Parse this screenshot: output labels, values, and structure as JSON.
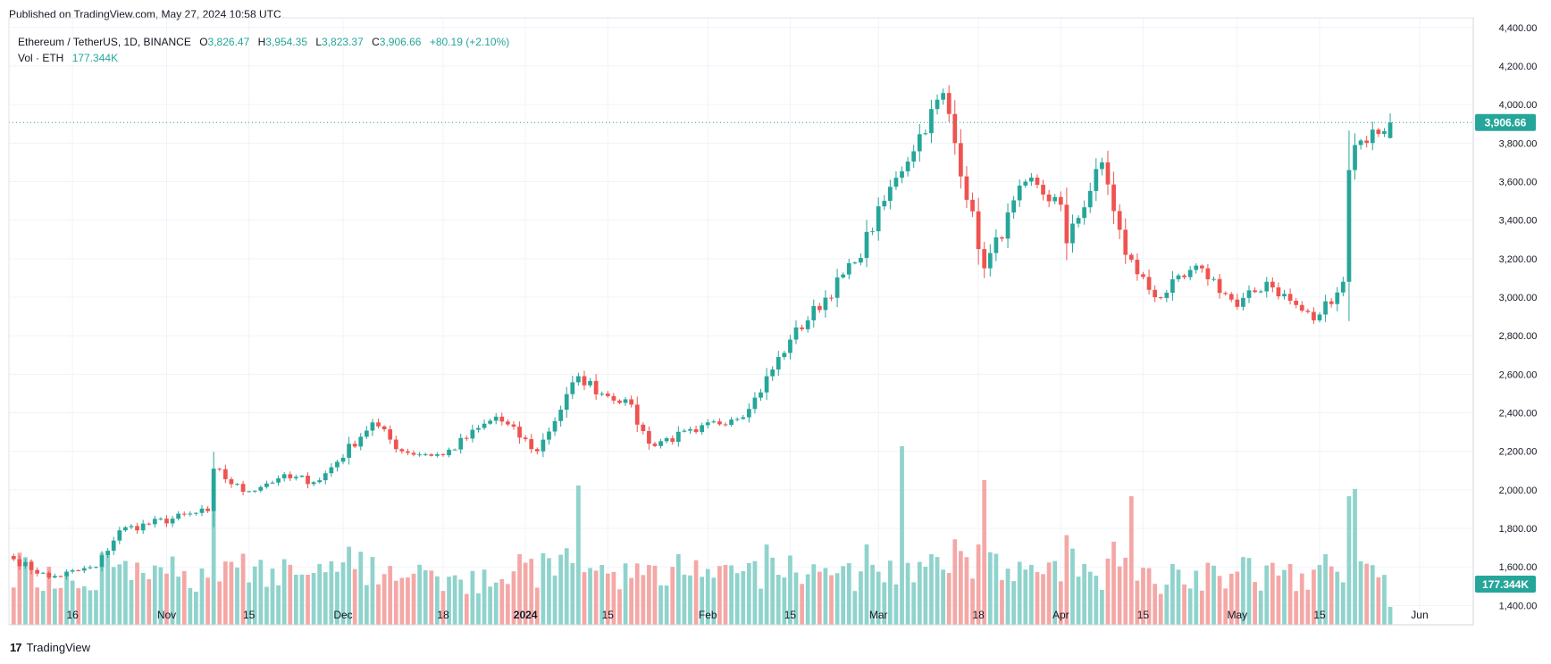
{
  "header": {
    "published": "Published on TradingView.com, May 27, 2024 10:58 UTC"
  },
  "legend": {
    "symbol": "Ethereum / TetherUS, 1D, BINANCE",
    "open_label": "O",
    "open": "3,826.47",
    "high_label": "H",
    "high": "3,954.35",
    "low_label": "L",
    "low": "3,823.37",
    "close_label": "C",
    "close": "3,906.66",
    "change": "+80.19 (+2.10%)",
    "vol_label": "Vol · ETH",
    "vol_value": "177.344K"
  },
  "footer": {
    "logo_mark": "17",
    "logo_text": "TradingView"
  },
  "colors": {
    "up": "#26a69a",
    "down": "#ef5350",
    "up_vol": "#8fd3cc",
    "down_vol": "#f4a8a6",
    "grid": "#f0f3fa",
    "axis_text": "#131722"
  },
  "chart_data": {
    "type": "candlestick",
    "title": "Ethereum / TetherUS, 1D, BINANCE",
    "y_axis": {
      "ticks": [
        "4,400.00",
        "4,200.00",
        "4,000.00",
        "3,800.00",
        "3,600.00",
        "3,400.00",
        "3,200.00",
        "3,000.00",
        "2,800.00",
        "2,600.00",
        "2,400.00",
        "2,200.00",
        "2,000.00",
        "1,800.00",
        "1,600.00",
        "1,400.00"
      ],
      "ylim": [
        1300,
        4450
      ]
    },
    "x_axis": {
      "ticks": [
        "16",
        "Nov",
        "15",
        "Dec",
        "18",
        "2024",
        "15",
        "Feb",
        "15",
        "Mar",
        "18",
        "Apr",
        "15",
        "May",
        "15",
        "Jun"
      ],
      "bold": [
        "2024"
      ]
    },
    "last_price_label": "3,906.66",
    "last_volume_label": "177.344K",
    "grid": true,
    "anchors": [
      {
        "date": "2023-10-06",
        "price": 1640
      },
      {
        "date": "2023-10-12",
        "price": 1545
      },
      {
        "date": "2023-10-20",
        "price": 1600
      },
      {
        "date": "2023-10-24",
        "price": 1790
      },
      {
        "date": "2023-11-08",
        "price": 1890
      },
      {
        "date": "2023-11-09",
        "price": 2110
      },
      {
        "date": "2023-11-14",
        "price": 1990
      },
      {
        "date": "2023-11-20",
        "price": 2060
      },
      {
        "date": "2023-11-27",
        "price": 2050
      },
      {
        "date": "2023-12-06",
        "price": 2350
      },
      {
        "date": "2023-12-11",
        "price": 2200
      },
      {
        "date": "2023-12-18",
        "price": 2180
      },
      {
        "date": "2023-12-27",
        "price": 2380
      },
      {
        "date": "2024-01-03",
        "price": 2200
      },
      {
        "date": "2024-01-10",
        "price": 2590
      },
      {
        "date": "2024-01-14",
        "price": 2500
      },
      {
        "date": "2024-01-18",
        "price": 2470
      },
      {
        "date": "2024-01-22",
        "price": 2240
      },
      {
        "date": "2024-01-30",
        "price": 2300
      },
      {
        "date": "2024-02-08",
        "price": 2420
      },
      {
        "date": "2024-02-15",
        "price": 2780
      },
      {
        "date": "2024-02-26",
        "price": 3180
      },
      {
        "date": "2024-03-04",
        "price": 3620
      },
      {
        "date": "2024-03-12",
        "price": 4060
      },
      {
        "date": "2024-03-19",
        "price": 3150
      },
      {
        "date": "2024-03-26",
        "price": 3600
      },
      {
        "date": "2024-04-01",
        "price": 3480
      },
      {
        "date": "2024-04-02",
        "price": 3280
      },
      {
        "date": "2024-04-08",
        "price": 3700
      },
      {
        "date": "2024-04-12",
        "price": 3220
      },
      {
        "date": "2024-04-17",
        "price": 3000
      },
      {
        "date": "2024-04-25",
        "price": 3150
      },
      {
        "date": "2024-05-01",
        "price": 2950
      },
      {
        "date": "2024-05-06",
        "price": 3080
      },
      {
        "date": "2024-05-14",
        "price": 2880
      },
      {
        "date": "2024-05-19",
        "price": 3080
      },
      {
        "date": "2024-05-20",
        "price": 3660
      },
      {
        "date": "2024-05-21",
        "price": 3790
      },
      {
        "date": "2024-05-27",
        "price": 3906.66
      }
    ],
    "volume_spikes": [
      {
        "date": "2023-11-09",
        "volume": 820
      },
      {
        "date": "2024-01-10",
        "volume": 780
      },
      {
        "date": "2024-03-05",
        "volume": 1000
      },
      {
        "date": "2024-03-19",
        "volume": 810
      },
      {
        "date": "2024-04-13",
        "volume": 720
      },
      {
        "date": "2024-05-20",
        "volume": 720
      },
      {
        "date": "2024-05-21",
        "volume": 760
      }
    ]
  }
}
